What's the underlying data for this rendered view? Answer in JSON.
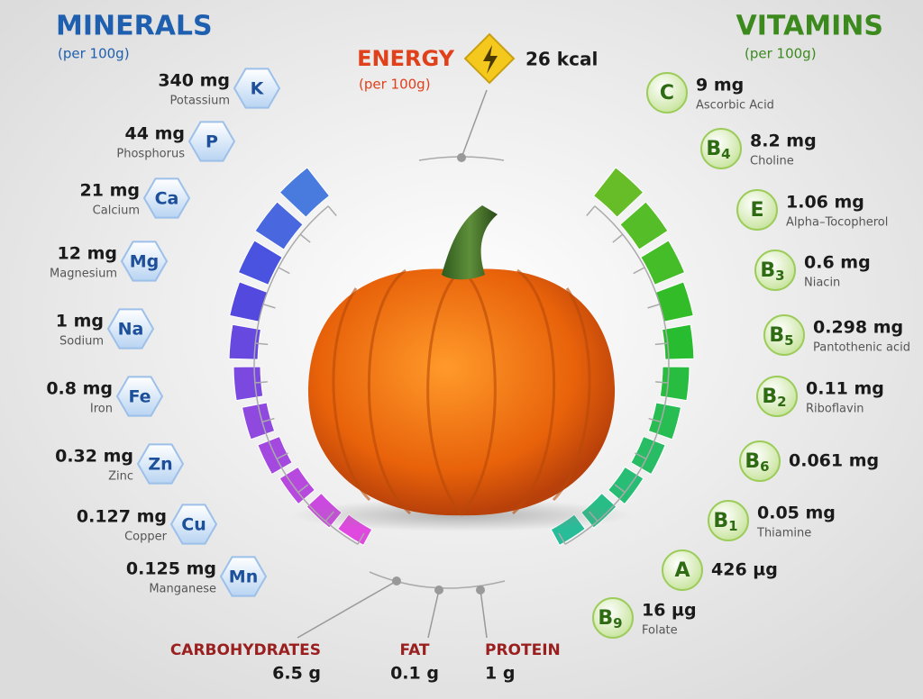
{
  "minerals": {
    "title": "MINERALS",
    "subtitle": "(per 100g)",
    "items": [
      {
        "amount": "340 mg",
        "name": "Potassium",
        "symbol": "K"
      },
      {
        "amount": "44 mg",
        "name": "Phosphorus",
        "symbol": "P"
      },
      {
        "amount": "21 mg",
        "name": "Calcium",
        "symbol": "Ca"
      },
      {
        "amount": "12 mg",
        "name": "Magnesium",
        "symbol": "Mg"
      },
      {
        "amount": "1 mg",
        "name": "Sodium",
        "symbol": "Na"
      },
      {
        "amount": "0.8 mg",
        "name": "Iron",
        "symbol": "Fe"
      },
      {
        "amount": "0.32 mg",
        "name": "Zinc",
        "symbol": "Zn"
      },
      {
        "amount": "0.127 mg",
        "name": "Copper",
        "symbol": "Cu"
      },
      {
        "amount": "0.125 mg",
        "name": "Manganese",
        "symbol": "Mn"
      }
    ]
  },
  "vitamins": {
    "title": "VITAMINS",
    "subtitle": "(per 100g)",
    "items": [
      {
        "amount": "9 mg",
        "name": "Ascorbic Acid",
        "symbol": "C"
      },
      {
        "amount": "8.2 mg",
        "name": "Choline",
        "symbol": "B",
        "sub": "4"
      },
      {
        "amount": "1.06 mg",
        "name": "Alpha–Tocopherol",
        "symbol": "E"
      },
      {
        "amount": "0.6 mg",
        "name": "Niacin",
        "symbol": "B",
        "sub": "3"
      },
      {
        "amount": "0.298 mg",
        "name": "Pantothenic acid",
        "symbol": "B",
        "sub": "5"
      },
      {
        "amount": "0.11 mg",
        "name": "Riboflavin",
        "symbol": "B",
        "sub": "2"
      },
      {
        "amount": "0.061 mg",
        "symbol": "B",
        "sub": "6"
      },
      {
        "amount": "0.05 mg",
        "name": "Thiamine",
        "symbol": "B",
        "sub": "1"
      },
      {
        "amount": "426 µg",
        "symbol": "A"
      },
      {
        "amount": "16 µg",
        "name": "Folate",
        "symbol": "B",
        "sub": "9"
      }
    ]
  },
  "energy": {
    "title": "ENERGY",
    "subtitle": "(per 100g)",
    "amount": "26 kcal"
  },
  "macros": [
    {
      "name": "CARBOHYDRATES",
      "amount": "6.5 g"
    },
    {
      "name": "FAT",
      "amount": "0.1 g"
    },
    {
      "name": "PROTEIN",
      "amount": "1 g"
    }
  ]
}
